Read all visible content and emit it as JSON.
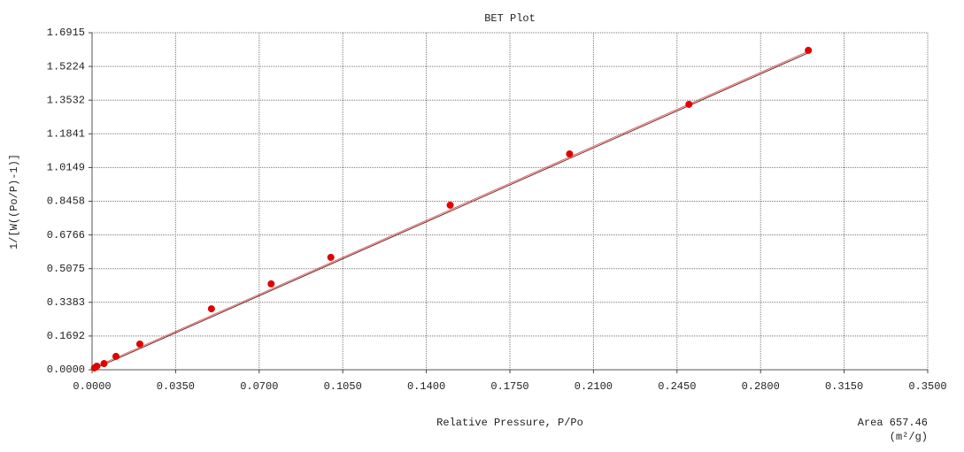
{
  "chart_data": {
    "type": "scatter",
    "title": "BET Plot",
    "x_label": "Relative Pressure, P/Po",
    "y_label": "1/[W((Po/P)-1)]",
    "annotations": [
      "Area 657.46",
      "(m²/g)"
    ],
    "x": [
      0.001,
      0.002,
      0.005,
      0.01,
      0.02,
      0.05,
      0.075,
      0.1,
      0.15,
      0.2,
      0.25,
      0.3
    ],
    "values": [
      0.009,
      0.018,
      0.031,
      0.067,
      0.129,
      0.306,
      0.431,
      0.564,
      0.826,
      1.083,
      1.332,
      1.603
    ],
    "color": "#e00000",
    "lines": [
      {
        "color": "#e06060",
        "x": [
          0.0004,
          0.3014
        ],
        "y": [
          0.009,
          1.606
        ]
      },
      {
        "color": "#6a2a2a",
        "x": [
          0,
          0.3014
        ],
        "y": [
          0,
          1.598
        ]
      }
    ],
    "xlim": [
      0,
      0.35
    ],
    "ylim": [
      0,
      1.6915
    ],
    "xticks": [
      {
        "value": 0,
        "label": "0.0000"
      },
      {
        "value": 0.035,
        "label": "0.0350"
      },
      {
        "value": 0.07,
        "label": "0.0700"
      },
      {
        "value": 0.105,
        "label": "0.1050"
      },
      {
        "value": 0.14,
        "label": "0.1400"
      },
      {
        "value": 0.175,
        "label": "0.1750"
      },
      {
        "value": 0.21,
        "label": "0.2100"
      },
      {
        "value": 0.245,
        "label": "0.2450"
      },
      {
        "value": 0.28,
        "label": "0.2800"
      },
      {
        "value": 0.315,
        "label": "0.3150"
      },
      {
        "value": 0.35,
        "label": "0.3500"
      }
    ],
    "yticks": [
      {
        "value": 0,
        "label": "0.0000"
      },
      0.1692,
      0.3383,
      0.5075,
      0.6766,
      0.8458,
      1.0149,
      1.1841,
      1.3532,
      1.5224,
      1.6915
    ],
    "grid": true
  }
}
